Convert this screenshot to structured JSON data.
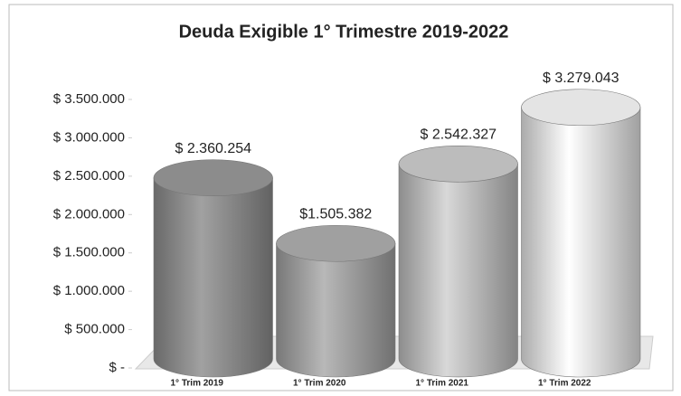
{
  "chart_data": {
    "type": "cylinder",
    "title": "Deuda Exigible 1° Trimestre 2019-2022",
    "categories": [
      "1° Trim 2019",
      "1° Trim 2020",
      "1° Trim 2021",
      "1° Trim 2022"
    ],
    "values": [
      2360254,
      1505382,
      2542327,
      3279043
    ],
    "value_labels": [
      "$ 2.360.254",
      "$1.505.382",
      "$ 2.542.327",
      "$ 3.279.043"
    ],
    "colors": [
      "#8c8c8c",
      "#a0a0a0",
      "#bcbcbc",
      "#e4e4e4"
    ],
    "ylim": [
      0,
      3500000
    ],
    "yticks": [
      {
        "value": 0,
        "label": "$ -"
      },
      {
        "value": 500000,
        "label": "$ 500.000"
      },
      {
        "value": 1000000,
        "label": "$ 1.000.000"
      },
      {
        "value": 1500000,
        "label": "$ 1.500.000"
      },
      {
        "value": 2000000,
        "label": "$ 2.000.000"
      },
      {
        "value": 2500000,
        "label": "$ 2.500.000"
      },
      {
        "value": 3000000,
        "label": "$ 3.000.000"
      },
      {
        "value": 3500000,
        "label": "$ 3.500.000"
      }
    ]
  }
}
